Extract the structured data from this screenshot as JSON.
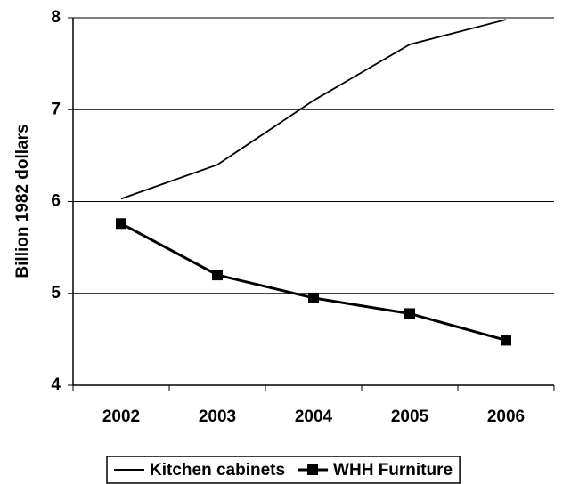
{
  "chart_data": {
    "type": "line",
    "y_label": "Billion 1982 dollars",
    "categories": [
      "2002",
      "2003",
      "2004",
      "2005",
      "2006"
    ],
    "series": [
      {
        "name": "Kitchen cabinets",
        "color": "#000000",
        "marker": "none",
        "values": [
          6.03,
          6.4,
          7.1,
          7.71,
          7.98
        ]
      },
      {
        "name": "WHH Furniture",
        "color": "#000000",
        "marker": "square",
        "values": [
          5.76,
          5.2,
          4.95,
          4.78,
          4.49
        ]
      }
    ],
    "ylim": [
      4,
      8
    ],
    "yticks": [
      4,
      5,
      6,
      7,
      8
    ],
    "grid": true,
    "legend": "bottom"
  }
}
